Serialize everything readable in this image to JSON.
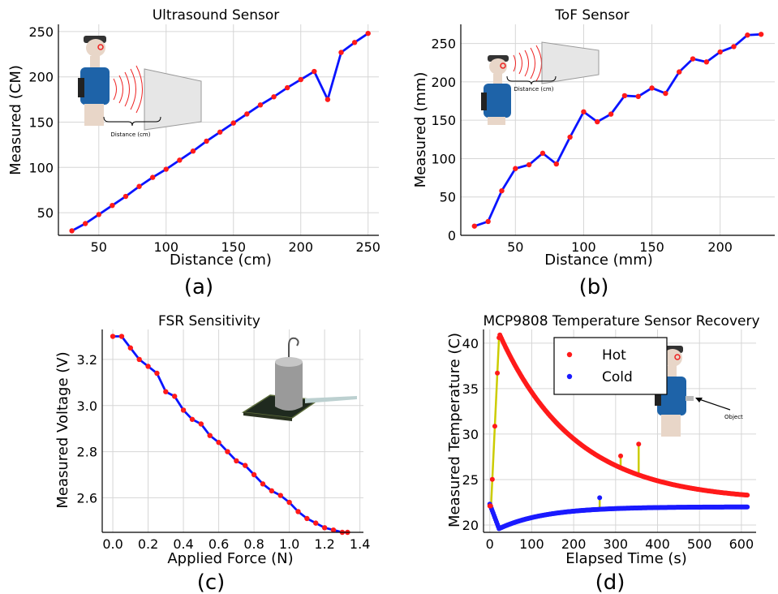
{
  "colors": {
    "line": "#0a14ff",
    "marker": "#ff1a1a",
    "hot": "#ff1a1a",
    "cold": "#1a1aff",
    "spike": "#cccc00",
    "grid": "#d6d6d6"
  },
  "chart_data": [
    {
      "panel_label": "(a)",
      "type": "line",
      "title": "Ultrasound Sensor",
      "xlabel": "Distance (cm)",
      "ylabel": "Measured (CM)",
      "xlim": [
        20,
        258
      ],
      "ylim": [
        25,
        258
      ],
      "xticks": [
        50,
        100,
        150,
        200,
        250
      ],
      "yticks": [
        50,
        100,
        150,
        200,
        250
      ],
      "grid": true,
      "series": [
        {
          "x": [
            30,
            40,
            50,
            60,
            70,
            80,
            90,
            100,
            110,
            120,
            130,
            140,
            150,
            160,
            170,
            180,
            190,
            200,
            210,
            220,
            230,
            240,
            250
          ],
          "y": [
            30,
            38,
            48,
            58,
            68,
            79,
            89,
            98,
            108,
            118,
            129,
            139,
            149,
            159,
            169,
            178,
            188,
            197,
            206,
            175,
            227,
            238,
            248
          ]
        }
      ],
      "inset": {
        "image": "person-ultrasound-wall-illustration",
        "text": "Distance (cm)"
      }
    },
    {
      "panel_label": "(b)",
      "type": "line",
      "title": "ToF Sensor",
      "xlabel": "Distance (mm)",
      "ylabel": "Measured (mm)",
      "xlim": [
        10,
        240
      ],
      "ylim": [
        0,
        275
      ],
      "xticks": [
        50,
        100,
        150,
        200
      ],
      "yticks": [
        0,
        50,
        100,
        150,
        200,
        250
      ],
      "grid": true,
      "series": [
        {
          "x": [
            20,
            30,
            40,
            50,
            60,
            70,
            80,
            90,
            100,
            110,
            120,
            130,
            140,
            150,
            160,
            170,
            180,
            190,
            200,
            210,
            220,
            230
          ],
          "y": [
            12,
            18,
            58,
            87,
            92,
            107,
            93,
            128,
            161,
            148,
            158,
            182,
            181,
            192,
            185,
            213,
            230,
            226,
            239,
            246,
            261,
            262
          ]
        }
      ],
      "inset": {
        "image": "person-tof-wall-illustration",
        "text": "Distance (cm)"
      }
    },
    {
      "panel_label": "(c)",
      "type": "line",
      "title": "FSR Sensitivity",
      "xlabel": "Applied Force (N)",
      "ylabel": "Measured Voltage (V)",
      "xlim": [
        -0.06,
        1.42
      ],
      "ylim": [
        2.45,
        3.33
      ],
      "xticks": [
        0.0,
        0.2,
        0.4,
        0.6,
        0.8,
        1.0,
        1.2,
        1.4
      ],
      "xticklabels": [
        "0.0",
        "0.2",
        "0.4",
        "0.6",
        "0.8",
        "1.0",
        "1.2",
        "1.4"
      ],
      "yticks": [
        2.6,
        2.8,
        3.0,
        3.2
      ],
      "yticklabels": [
        "2.6",
        "2.8",
        "3.0",
        "3.2"
      ],
      "grid": true,
      "series": [
        {
          "x": [
            0.0,
            0.05,
            0.1,
            0.15,
            0.2,
            0.25,
            0.3,
            0.35,
            0.4,
            0.45,
            0.5,
            0.55,
            0.6,
            0.65,
            0.7,
            0.75,
            0.8,
            0.85,
            0.9,
            0.95,
            1.0,
            1.05,
            1.1,
            1.15,
            1.2,
            1.25,
            1.3,
            1.33
          ],
          "y": [
            3.3,
            3.3,
            3.25,
            3.2,
            3.17,
            3.14,
            3.06,
            3.04,
            2.98,
            2.94,
            2.92,
            2.87,
            2.84,
            2.8,
            2.76,
            2.74,
            2.7,
            2.66,
            2.63,
            2.61,
            2.58,
            2.54,
            2.51,
            2.49,
            2.47,
            2.46,
            2.45,
            2.45
          ]
        }
      ],
      "inset": {
        "image": "fsr-weight-on-sensor-illustration"
      }
    },
    {
      "panel_label": "(d)",
      "type": "scatter",
      "title": "MCP9808 Temperature Sensor Recovery",
      "xlabel": "Elapsed Time (s)",
      "ylabel": "Measured Temperature (C)",
      "xlim": [
        -15,
        635
      ],
      "ylim": [
        19.2,
        41.5
      ],
      "xticks": [
        0,
        100,
        200,
        300,
        400,
        500,
        600
      ],
      "yticks": [
        20,
        25,
        30,
        35,
        40
      ],
      "grid": true,
      "legend": {
        "position": "top-center"
      },
      "series": [
        {
          "name": "Hot",
          "model": "warm-up then exponential decay",
          "ambient": 22.1,
          "peak": 40.6,
          "peak_time": 22,
          "settle": 22.1,
          "tau": 180,
          "end_time": 615,
          "start": [
            0,
            22.1
          ],
          "spikes": [
            [
              312,
              27.6
            ],
            [
              355,
              28.9
            ]
          ]
        },
        {
          "name": "Cold",
          "model": "dip then exponential recovery",
          "start": [
            0,
            22.3
          ],
          "min": 19.6,
          "min_time": 22,
          "settle": 22.0,
          "tau": 110,
          "end_time": 615,
          "spikes": [
            [
              262,
              23.0
            ]
          ]
        }
      ],
      "inset": {
        "image": "person-temperature-object-illustration",
        "text": "Object"
      }
    }
  ]
}
